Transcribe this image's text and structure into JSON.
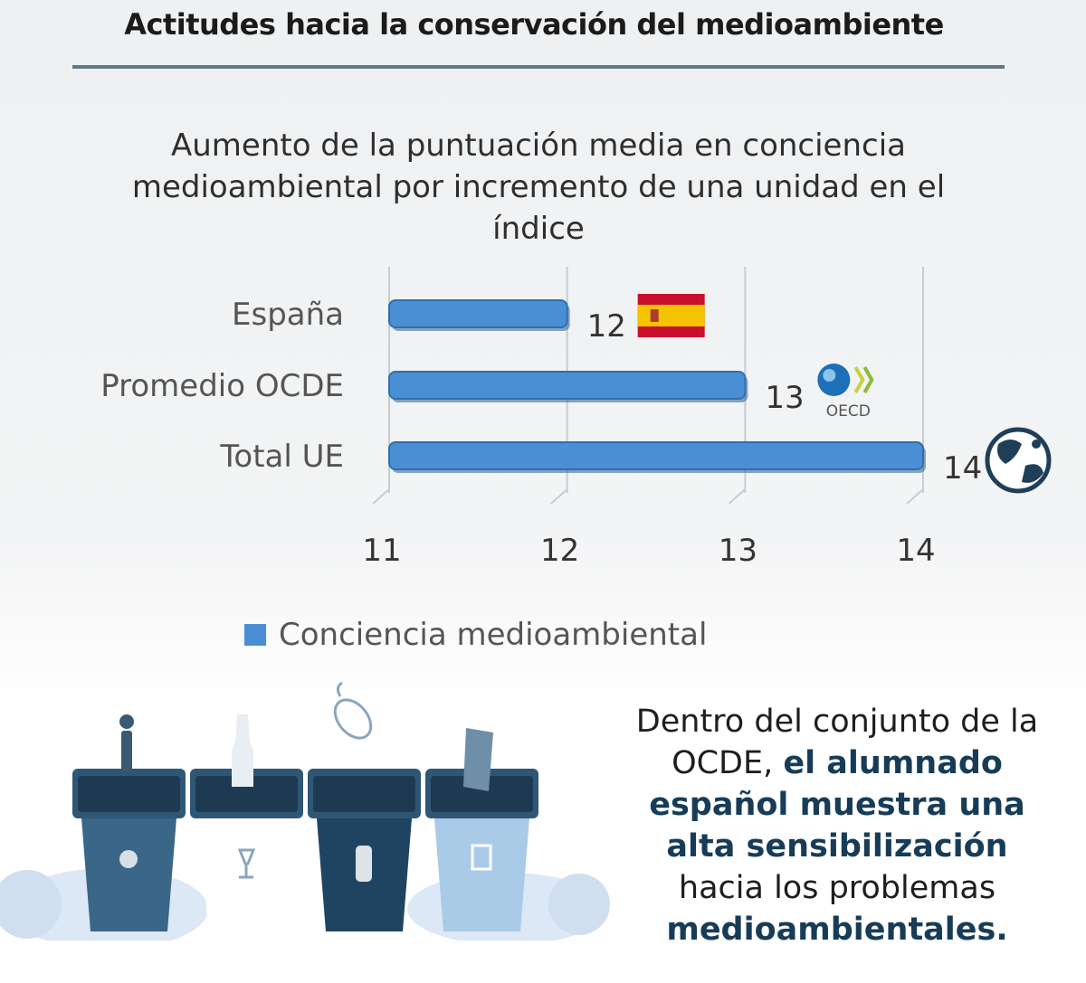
{
  "header": {
    "title": "Actitudes hacia la conservación del medioambiente"
  },
  "chart_data": {
    "type": "bar",
    "orientation": "horizontal",
    "title": "Aumento de la puntuación media en conciencia medioambiental por incremento de una unidad en el índice",
    "categories": [
      "España",
      "Promedio OCDE",
      "Total UE"
    ],
    "series": [
      {
        "name": "Conciencia medioambiental",
        "values": [
          12,
          13,
          14
        ]
      }
    ],
    "data_labels": [
      "12",
      "13",
      "14"
    ],
    "xlim": [
      11,
      14
    ],
    "xticks": [
      "11",
      "12",
      "13",
      "14"
    ],
    "grid": true,
    "legend_position": "bottom",
    "colors": {
      "bar": "#4a8fd4",
      "bar_edge": "#2f6fb0"
    },
    "markers": [
      "spain-flag-icon",
      "oecd-logo-icon",
      "globe-icon"
    ],
    "marker_text": {
      "oecd": "OECD"
    }
  },
  "message": {
    "part1": "Dentro del conjunto de la OCDE, ",
    "part2": "el alumnado español muestra una alta sensibilización",
    "part3": " hacia los problemas ",
    "part4": "medioambientales."
  }
}
